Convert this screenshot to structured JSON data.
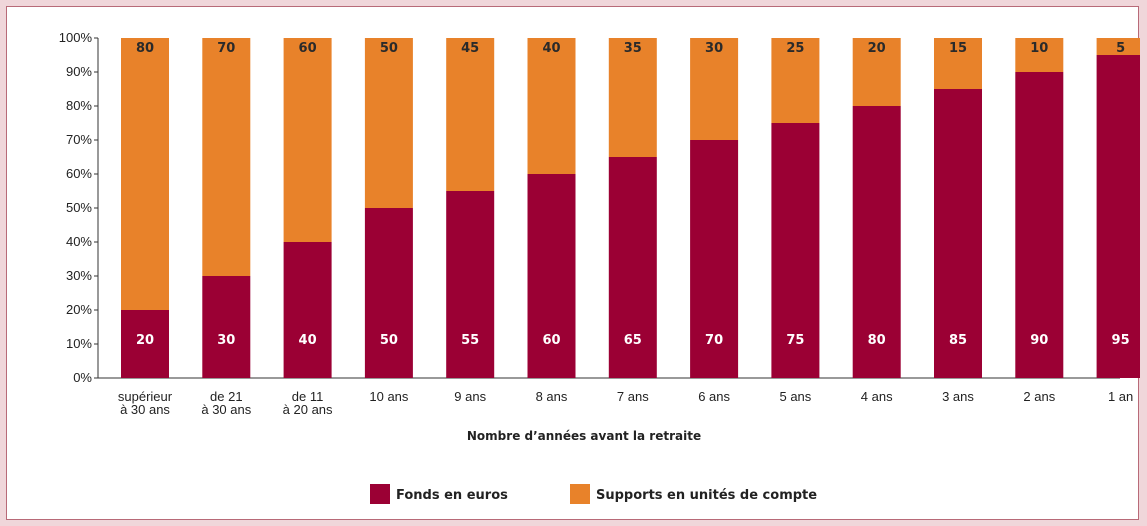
{
  "chart_data": {
    "type": "bar",
    "stacked": true,
    "categories": [
      [
        "supérieur",
        "à 30 ans"
      ],
      [
        "de 21",
        "à 30 ans"
      ],
      [
        "de 11",
        "à 20 ans"
      ],
      [
        "10 ans"
      ],
      [
        "9 ans"
      ],
      [
        "8 ans"
      ],
      [
        "7 ans"
      ],
      [
        "6 ans"
      ],
      [
        "5 ans"
      ],
      [
        "4 ans"
      ],
      [
        "3 ans"
      ],
      [
        "2 ans"
      ],
      [
        "1 an"
      ]
    ],
    "series": [
      {
        "name": "Fonds en euros",
        "color": "#9b0034",
        "values": [
          20,
          30,
          40,
          50,
          55,
          60,
          65,
          70,
          75,
          80,
          85,
          90,
          95
        ]
      },
      {
        "name": "Supports en unités de compte",
        "color": "#e8822a",
        "values": [
          80,
          70,
          60,
          50,
          45,
          40,
          35,
          30,
          25,
          20,
          15,
          10,
          5
        ]
      }
    ],
    "y_ticks": [
      "0%",
      "10%",
      "20%",
      "30%",
      "40%",
      "50%",
      "60%",
      "70%",
      "80%",
      "90%",
      "100%"
    ],
    "ylim": [
      0,
      100
    ],
    "xlabel": "Nombre d’années avant la retraite",
    "legend_position": "bottom-center",
    "grid": false
  }
}
